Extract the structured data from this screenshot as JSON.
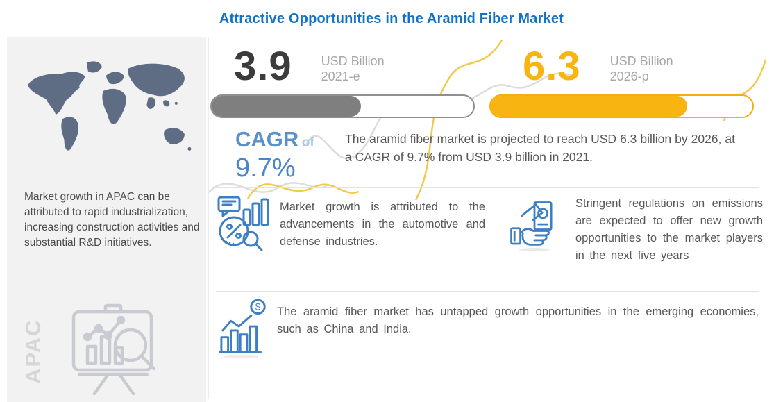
{
  "title": "Attractive Opportunities in the Aramid Fiber Market",
  "sidebar": {
    "note": "Market growth in APAC can be attributed to rapid industrialization, increasing construction activities and substantial R&D initiatives.",
    "region_label": "APAC"
  },
  "market": {
    "current": {
      "value": "3.9",
      "unit": "USD Billion",
      "year": "2021-e",
      "fill_pct": 57
    },
    "forecast": {
      "value": "6.3",
      "unit": "USD Billion",
      "year": "2026-p",
      "fill_pct": 75
    },
    "cagr_label": "CAGR",
    "cagr_of": "of",
    "cagr_value": "9.7%",
    "summary": "The aramid fiber market is projected to reach USD 6.3 billion by 2026, at a CAGR of 9.7% from USD 3.9 billion in 2021."
  },
  "insights": {
    "drivers": "Market growth is attributed to the advancements in the automotive and defense industries.",
    "regulations": "Stringent regulations on emissions are expected to offer new growth opportunities to the market players in the next five years",
    "opportunities": "The aramid fiber market has untapped growth opportunities in the emerging economies, such as China and India."
  },
  "icons": {
    "dollar": "$"
  },
  "colors": {
    "title_blue": "#1472c5",
    "bar_gray": "#7f7f7f",
    "bar_orange": "#f8b512",
    "cagr_blue": "#4a86c8",
    "icon_blue": "#3e7ec2",
    "sidebar_bg": "#f2f2f3",
    "map_fill": "#5f6d84"
  },
  "chart_data": {
    "type": "bar",
    "title": "Attractive Opportunities in the Aramid Fiber Market",
    "categories": [
      "2021-e",
      "2026-p"
    ],
    "values": [
      3.9,
      6.3
    ],
    "unit": "USD Billion",
    "cagr_pct": 9.7,
    "bar_colors": [
      "#7f7f7f",
      "#f8b512"
    ],
    "bar_fill_fraction": [
      0.57,
      0.75
    ],
    "annotations": [
      "The aramid fiber market is projected to reach USD 6.3 billion by 2026, at a CAGR of 9.7% from USD 3.9 billion in 2021."
    ]
  }
}
